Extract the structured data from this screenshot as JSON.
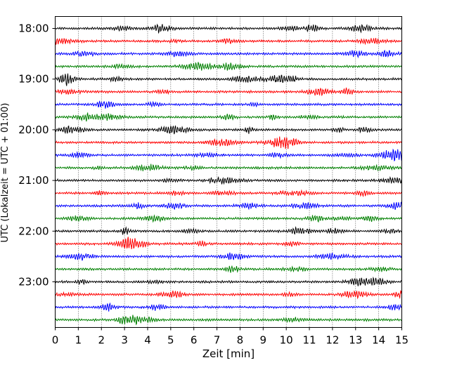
{
  "chart_data": {
    "type": "line",
    "subtype": "helicorder",
    "xlabel": "Zeit  [min]",
    "ylabel": "UTC (Lokalzeit = UTC + 01:00)",
    "xlim": [
      0,
      15
    ],
    "xticks": [
      "0",
      "1",
      "2",
      "3",
      "4",
      "5",
      "6",
      "7",
      "8",
      "9",
      "10",
      "11",
      "12",
      "13",
      "14",
      "15"
    ],
    "grid": "x-dotted",
    "trace_interval_min": 15,
    "trace_colors": [
      "#000000",
      "#ff0000",
      "#0000ff",
      "#008000"
    ],
    "hour_labels": [
      "18:00",
      "19:00",
      "20:00",
      "21:00",
      "22:00",
      "23:00"
    ],
    "traces_per_hour": 4,
    "trace_count": 24
  }
}
